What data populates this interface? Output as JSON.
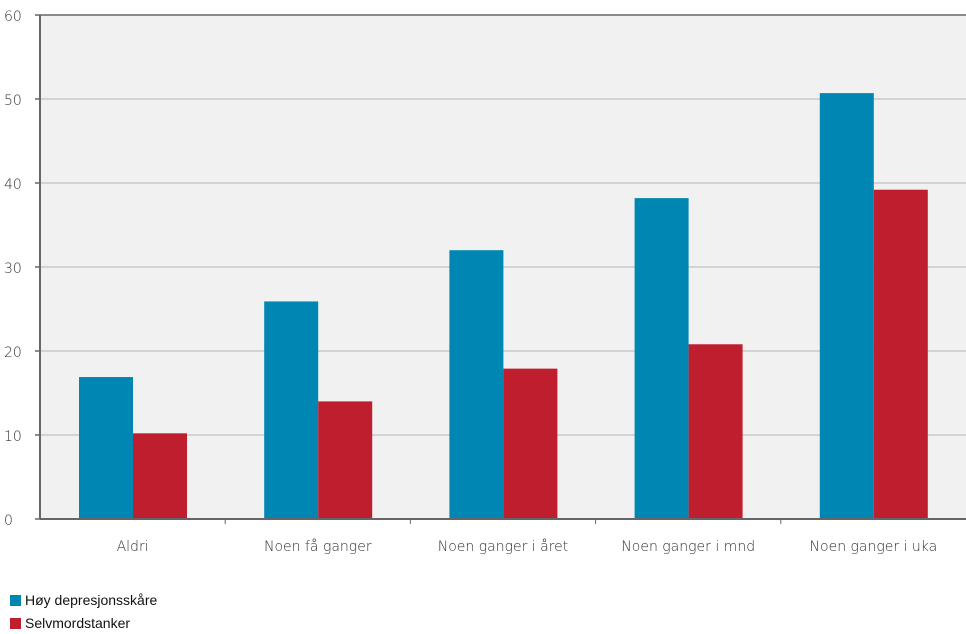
{
  "chart_data": {
    "type": "bar",
    "categories": [
      "Aldri",
      "Noen få ganger",
      "Noen ganger i året",
      "Noen ganger i mnd",
      "Noen ganger i uka"
    ],
    "series": [
      {
        "name": "Høy depresjonsskåre",
        "color": "#0086B3",
        "values": [
          16.9,
          25.9,
          32.0,
          38.2,
          50.7
        ]
      },
      {
        "name": "Selvmordstanker",
        "color": "#BE1E2D",
        "values": [
          10.2,
          14.0,
          17.9,
          20.8,
          39.2
        ]
      }
    ],
    "title": "",
    "xlabel": "",
    "ylabel": "",
    "ylim": [
      0,
      60
    ],
    "yticks": [
      "0",
      "10",
      "20",
      "30",
      "40",
      "50",
      "60"
    ],
    "grid": true,
    "legend_position": "bottom-left",
    "plot_background": "#F1F1F1",
    "grid_color": "#B5B5B5",
    "axis_color": "#666666"
  }
}
